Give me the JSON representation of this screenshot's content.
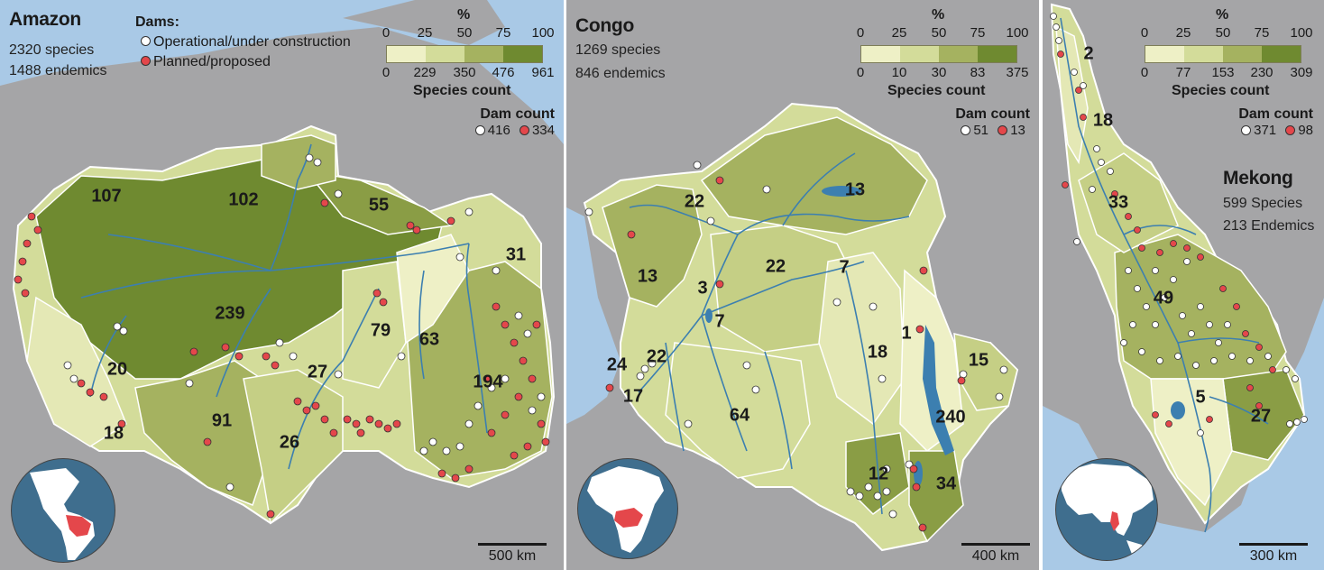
{
  "colors": {
    "water": "#a9c9e6",
    "land": "#a5a5a7",
    "river": "#3c7fb0",
    "dam_operational": "#ffffff",
    "dam_planned": "#e4474b",
    "scale": [
      "#eef0c6",
      "#d3dc9a",
      "#a5b260",
      "#6f8a30"
    ]
  },
  "panels": [
    {
      "title": "Amazon",
      "species": "2320 species",
      "endemics": "1488 endemics",
      "legend": {
        "title": "%",
        "pct_ticks": [
          "0",
          "25",
          "50",
          "75",
          "100"
        ],
        "count_ticks": [
          "0",
          "229",
          "350",
          "476",
          "961"
        ],
        "count_title": "Species count"
      },
      "dam_key": {
        "title": "Dams:",
        "operational": "Operational/under construction",
        "planned": "Planned/proposed"
      },
      "dam_count": {
        "title": "Dam count",
        "operational": "416",
        "planned": "334"
      },
      "basin_labels": [
        "107",
        "102",
        "55",
        "239",
        "79",
        "63",
        "31",
        "20",
        "27",
        "194",
        "91",
        "26",
        "18"
      ],
      "scale_bar": "500 km",
      "globe": "americas-globe-icon"
    },
    {
      "title": "Congo",
      "species": "1269 species",
      "endemics": "846 endemics",
      "legend": {
        "title": "%",
        "pct_ticks": [
          "0",
          "25",
          "50",
          "75",
          "100"
        ],
        "count_ticks": [
          "0",
          "10",
          "30",
          "83",
          "375"
        ],
        "count_title": "Species count"
      },
      "dam_count": {
        "title": "Dam count",
        "operational": "51",
        "planned": "13"
      },
      "basin_labels": [
        "13",
        "22",
        "22",
        "7",
        "13",
        "3",
        "7",
        "22",
        "24",
        "17",
        "1",
        "18",
        "15",
        "240",
        "64",
        "12",
        "34"
      ],
      "scale_bar": "400 km",
      "globe": "africa-globe-icon"
    },
    {
      "title": "Mekong",
      "species": "599 Species",
      "endemics": "213 Endemics",
      "legend": {
        "title": "%",
        "pct_ticks": [
          "0",
          "25",
          "50",
          "75",
          "100"
        ],
        "count_ticks": [
          "0",
          "77",
          "153",
          "230",
          "309"
        ],
        "count_title": "Species count"
      },
      "dam_count": {
        "title": "Dam count",
        "operational": "371",
        "planned": "98"
      },
      "basin_labels": [
        "2",
        "18",
        "33",
        "49",
        "5",
        "27"
      ],
      "scale_bar": "300 km",
      "globe": "asia-globe-icon"
    }
  ]
}
